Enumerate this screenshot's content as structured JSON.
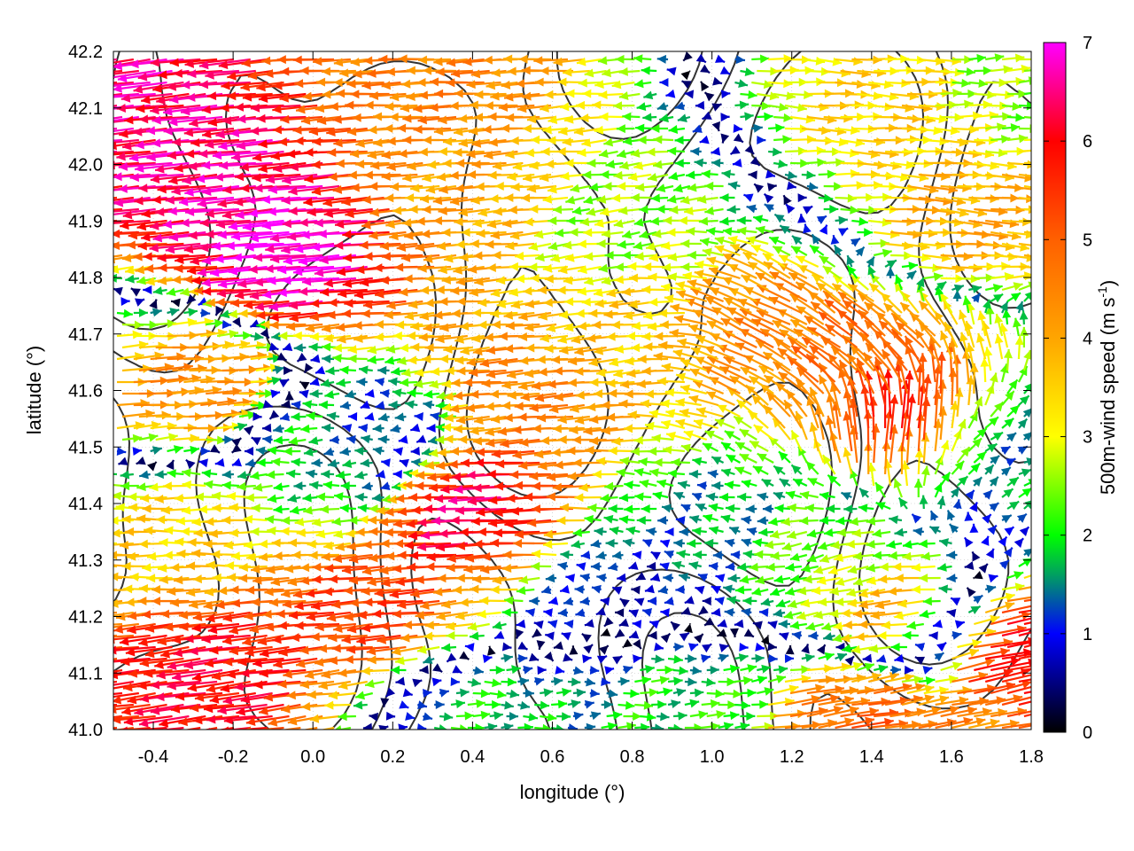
{
  "chart_data": {
    "type": "vector-field",
    "xlabel": "longitude (°)",
    "ylabel": "latitude (°)",
    "colorbar_label": "500m-wind speed (m s",
    "colorbar_label_sup": "-1",
    "colorbar_label_close": ")",
    "xlim": [
      -0.5,
      1.8
    ],
    "ylim": [
      41.0,
      42.2
    ],
    "xticks": [
      -0.4,
      -0.2,
      0.0,
      0.2,
      0.4,
      0.6,
      0.8,
      1.0,
      1.2,
      1.4,
      1.6,
      1.8
    ],
    "xtick_labels": [
      "-0.4",
      "-0.2",
      "0.0",
      "0.2",
      "0.4",
      "0.6",
      "0.8",
      "1.0",
      "1.2",
      "1.4",
      "1.6",
      "1.8"
    ],
    "yticks": [
      41.0,
      41.1,
      41.2,
      41.3,
      41.4,
      41.5,
      41.6,
      41.7,
      41.8,
      41.9,
      42.0,
      42.1,
      42.2
    ],
    "ytick_labels": [
      "41.0",
      "41.1",
      "41.2",
      "41.3",
      "41.4",
      "41.5",
      "41.6",
      "41.7",
      "41.8",
      "41.9",
      "42.0",
      "42.1",
      "42.2"
    ],
    "colorbar_range": [
      0,
      7
    ],
    "colorbar_ticks": [
      0,
      1,
      2,
      3,
      4,
      5,
      6,
      7
    ],
    "colorbar_tick_labels": [
      "0",
      "1",
      "2",
      "3",
      "4",
      "5",
      "6",
      "7"
    ],
    "colormap": [
      {
        "v": 0,
        "color": "#000000"
      },
      {
        "v": 1,
        "color": "#0000ff"
      },
      {
        "v": 1.6,
        "color": "#00a060"
      },
      {
        "v": 2,
        "color": "#00ff00"
      },
      {
        "v": 3,
        "color": "#ffff00"
      },
      {
        "v": 4,
        "color": "#ffa500"
      },
      {
        "v": 5,
        "color": "#ff6000"
      },
      {
        "v": 6,
        "color": "#ff0000"
      },
      {
        "v": 7,
        "color": "#ff00ff"
      }
    ],
    "grid": true,
    "wind_regions": [
      {
        "lon": -0.5,
        "lat": 42.2,
        "u": -6.5,
        "v": -0.8
      },
      {
        "lon": -0.2,
        "lat": 42.0,
        "u": -6.5,
        "v": -0.6
      },
      {
        "lon": 0.0,
        "lat": 41.85,
        "u": -7.0,
        "v": -0.6
      },
      {
        "lon": 0.3,
        "lat": 42.15,
        "u": -4.5,
        "v": -0.2
      },
      {
        "lon": 0.4,
        "lat": 41.95,
        "u": -4.0,
        "v": -0.3
      },
      {
        "lon": 0.8,
        "lat": 41.9,
        "u": -2.5,
        "v": -0.3
      },
      {
        "lon": 1.4,
        "lat": 42.1,
        "u": 3.5,
        "v": -0.2
      },
      {
        "lon": 1.6,
        "lat": 41.9,
        "u": 4.0,
        "v": -0.4
      },
      {
        "lon": 1.75,
        "lat": 42.15,
        "u": 2.5,
        "v": 0.1
      },
      {
        "lon": -0.3,
        "lat": 41.6,
        "u": 4.5,
        "v": 0.3
      },
      {
        "lon": -0.3,
        "lat": 41.35,
        "u": -3.5,
        "v": 0.0
      },
      {
        "lon": 0.0,
        "lat": 41.5,
        "u": -2.0,
        "v": -0.1
      },
      {
        "lon": 0.2,
        "lat": 41.5,
        "u": -0.8,
        "v": 0.0
      },
      {
        "lon": 0.45,
        "lat": 41.4,
        "u": -6.5,
        "v": -0.3
      },
      {
        "lon": 0.6,
        "lat": 41.6,
        "u": -4.5,
        "v": -0.4
      },
      {
        "lon": 0.8,
        "lat": 41.7,
        "u": -3.5,
        "v": -0.4
      },
      {
        "lon": 1.15,
        "lat": 41.7,
        "u": -4.0,
        "v": 2.0
      },
      {
        "lon": 1.4,
        "lat": 41.65,
        "u": -4.0,
        "v": 3.0
      },
      {
        "lon": 1.5,
        "lat": 41.55,
        "u": 0.5,
        "v": 6.5
      },
      {
        "lon": 1.7,
        "lat": 41.5,
        "u": 1.5,
        "v": 0.5
      },
      {
        "lon": 0.2,
        "lat": 41.2,
        "u": -5.5,
        "v": -0.5
      },
      {
        "lon": -0.2,
        "lat": 41.1,
        "u": -6.0,
        "v": -0.8
      },
      {
        "lon": 0.8,
        "lat": 41.25,
        "u": -0.8,
        "v": 0.0
      },
      {
        "lon": 1.0,
        "lat": 41.35,
        "u": -1.5,
        "v": 0.3
      },
      {
        "lon": 1.3,
        "lat": 41.3,
        "u": -2.5,
        "v": -0.6
      },
      {
        "lon": 1.5,
        "lat": 41.2,
        "u": -4.5,
        "v": -0.5
      },
      {
        "lon": 1.7,
        "lat": 41.15,
        "u": 6.5,
        "v": 1.3
      },
      {
        "lon": 1.35,
        "lat": 41.02,
        "u": 5.0,
        "v": 0.8
      },
      {
        "lon": 0.9,
        "lat": 41.05,
        "u": 2.0,
        "v": 0.1
      },
      {
        "lon": 0.4,
        "lat": 41.05,
        "u": 2.0,
        "v": 0.0
      }
    ]
  }
}
